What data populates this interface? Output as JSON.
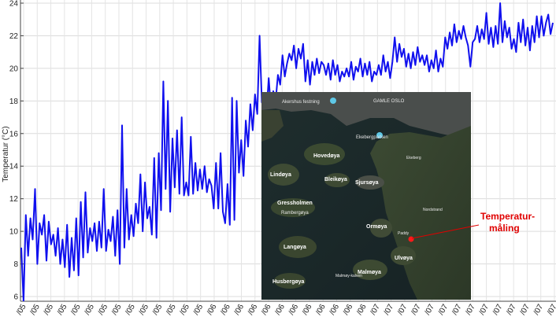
{
  "chart_data": {
    "type": "line",
    "title": "",
    "xlabel": "",
    "ylabel": "Temperatur (°C)",
    "ylim": [
      6,
      24
    ],
    "yticks": [
      6,
      8,
      10,
      12,
      14,
      16,
      18,
      20,
      22,
      24
    ],
    "xtick_labels": [
      "/05",
      "/05",
      "/05",
      "/05",
      "/05",
      "/05",
      "/05",
      "/05",
      "/05",
      "/05",
      "/05",
      "/05",
      "/05",
      "/05",
      "/06",
      "/06",
      "/06",
      "/06",
      "/06",
      "/06",
      "/06",
      "/06",
      "/06",
      "/06",
      "/06",
      "/06",
      "/07",
      "/07",
      "/07",
      "/07",
      "/07",
      "/07",
      "/07",
      "/07",
      "/07",
      "/07",
      "/07",
      "/07",
      "/07",
      "/07"
    ],
    "grid": true,
    "legend": false,
    "series_color": "#1010ee",
    "series": [
      {
        "values": [
          9.0,
          5.7,
          11.0,
          8.5,
          10.8,
          9.5,
          12.6,
          8.0,
          10.5,
          9.8,
          11.0,
          8.2,
          10.6,
          9.2,
          9.8,
          8.5,
          10.2,
          8.0,
          9.5,
          7.8,
          10.4,
          7.2,
          9.6,
          7.6,
          10.8,
          7.3,
          11.8,
          8.4,
          12.4,
          8.7,
          10.2,
          9.4,
          10.5,
          8.8,
          10.6,
          9.0,
          12.6,
          8.8,
          10.1,
          9.4,
          10.9,
          8.5,
          11.3,
          8.0,
          16.5,
          9.0,
          12.6,
          9.5,
          11.0,
          9.7,
          11.7,
          10.5,
          13.5,
          10.0,
          13.0,
          10.8,
          11.5,
          9.8,
          14.5,
          9.6,
          14.8,
          11.3,
          19.2,
          12.6,
          18.0,
          11.2,
          15.7,
          12.7,
          16.2,
          12.3,
          17.0,
          12.2,
          13.0,
          12.2,
          15.8,
          12.3,
          14.2,
          12.5,
          13.8,
          12.6,
          14.0,
          12.4,
          13.2,
          12.8,
          11.4,
          14.2,
          11.4,
          14.8,
          11.2,
          10.5,
          12.9,
          10.4,
          18.2,
          10.7,
          18.0,
          13.6,
          15.6,
          13.4,
          16.8,
          15.2,
          17.8,
          16.2,
          18.4,
          17.2,
          22.0,
          17.9,
          18.4,
          17.2,
          19.4,
          17.5,
          18.6,
          18.0,
          19.6,
          19.0,
          20.8,
          19.5,
          20.3,
          20.9,
          20.5,
          21.4,
          20.0,
          21.2,
          20.6,
          21.5,
          19.2,
          20.5,
          19.0,
          20.4,
          19.6,
          20.6,
          19.7,
          20.4,
          20.2,
          19.6,
          20.3,
          19.3,
          20.5,
          19.6,
          20.2,
          19.2,
          19.8,
          19.5,
          20.0,
          19.5,
          20.4,
          19.3,
          20.1,
          19.8,
          20.6,
          19.5,
          20.3,
          19.6,
          20.4,
          19.2,
          19.8,
          19.6,
          20.2,
          19.6,
          20.8,
          19.8,
          20.4,
          19.4,
          20.4,
          21.9,
          20.4,
          21.5,
          20.7,
          21.2,
          20.1,
          20.9,
          20.0,
          21.0,
          20.2,
          21.3,
          20.4,
          20.8,
          20.2,
          20.8,
          19.8,
          20.5,
          20.0,
          21.1,
          19.8,
          20.6,
          20.1,
          21.9,
          21.2,
          22.2,
          21.4,
          22.7,
          21.6,
          22.3,
          21.8,
          22.6,
          21.9,
          21.4,
          20.1,
          21.6,
          21.8,
          22.6,
          21.6,
          22.4,
          21.8,
          23.4,
          21.5,
          22.5,
          21.3,
          22.6,
          21.5,
          24.0,
          21.6,
          22.9,
          21.9,
          22.5,
          21.2,
          21.8,
          21.0,
          22.8,
          21.6,
          23.0,
          21.4,
          22.5,
          21.1,
          22.6,
          21.6,
          23.2,
          21.9,
          23.2,
          22.0,
          22.8,
          23.3,
          22.1,
          22.8
        ]
      }
    ],
    "inset_map": {
      "labels": [
        {
          "text": "Akershus festning"
        },
        {
          "text": "GAMLE OSLO"
        },
        {
          "text": "Ekebergparken"
        },
        {
          "text": "Ekeberg"
        },
        {
          "text": "Hovedøya"
        },
        {
          "text": "Lindøya"
        },
        {
          "text": "Bleikøya"
        },
        {
          "text": "Sjursøya"
        },
        {
          "text": "Gressholmen"
        },
        {
          "text": "Rambergøya"
        },
        {
          "text": "Nordstrand"
        },
        {
          "text": "Ormøya"
        },
        {
          "text": "Langøya"
        },
        {
          "text": "Malmøya"
        },
        {
          "text": "Malmøy-kalven"
        },
        {
          "text": "Ulvøya"
        },
        {
          "text": "Husbergøya"
        },
        {
          "text": "Paddy"
        }
      ],
      "callout_lines": [
        "Temperatur-",
        "måling"
      ]
    }
  }
}
